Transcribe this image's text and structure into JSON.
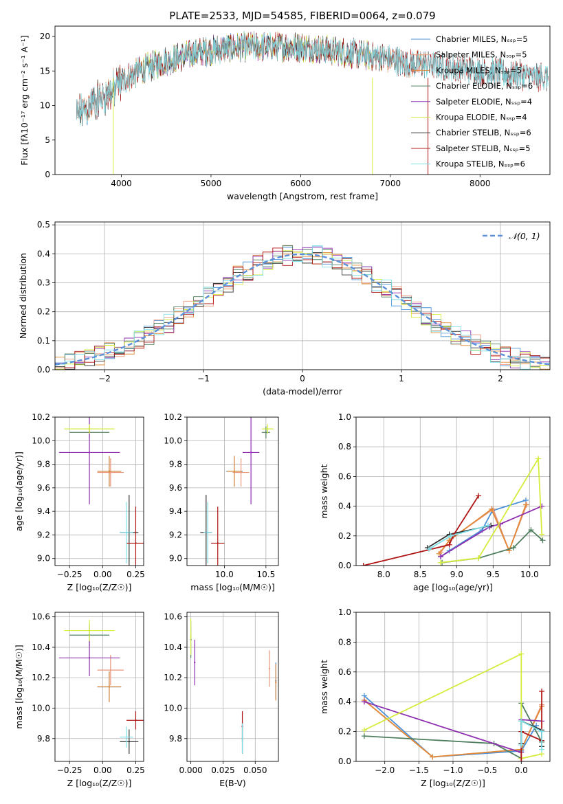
{
  "figure": {
    "title": "PLATE=2533, MJD=54585, FIBERID=0064, z=0.079"
  },
  "colors": {
    "Chabrier MILES": "#4a90d9",
    "Salpeter MILES": "#e9967a",
    "Kroupa MILES": "#e08a3a",
    "Chabrier ELODIE": "#4f7f5f",
    "Salpeter ELODIE": "#8e2fb0",
    "Kroupa ELODIE": "#d6ec3c",
    "Chabrier STELIB": "#333333",
    "Salpeter STELIB": "#b01515",
    "Kroupa STELIB": "#7ee0e8"
  },
  "chart_data": [
    {
      "id": "spectrum",
      "type": "line",
      "xlabel": "wavelength [Angstrom, rest frame]",
      "ylabel": "Flux [fλ10⁻¹⁷ erg cm⁻² s⁻¹ A⁻¹]",
      "xlim": [
        3260,
        8780
      ],
      "ylim": [
        0,
        21.5
      ],
      "xticks": [
        4000,
        5000,
        6000,
        7000,
        8000
      ],
      "yticks": [
        0,
        5,
        10,
        15,
        20
      ],
      "grid": false,
      "legend_position": "right",
      "legend": [
        "Chabrier MILES, N_SSP=5",
        "Salpeter MILES, N_SSP=5",
        "Kroupa MILES, N_SSP=5",
        "Chabrier ELODIE, N_SSP=6",
        "Salpeter ELODIE, N_SSP=4",
        "Kroupa ELODIE, N_SSP=4",
        "Chabrier STELIB, N_SSP=6",
        "Salpeter STELIB, N_SSP=5",
        "Kroupa STELIB, N_SSP=6"
      ],
      "continuum": {
        "x": [
          3500,
          3700,
          3900,
          4000,
          4200,
          4500,
          4800,
          5000,
          5300,
          5600,
          6000,
          6300,
          6600,
          6900,
          7200,
          7400,
          7700,
          8000,
          8400,
          8750
        ],
        "y": [
          8.5,
          10.5,
          12,
          13.5,
          15,
          16.5,
          17.5,
          18,
          18.5,
          18.5,
          18.5,
          18,
          17.5,
          17,
          16,
          16,
          15.5,
          15,
          14.5,
          14
        ]
      }
    },
    {
      "id": "residuals",
      "type": "line",
      "xlabel": "(data-model)/error",
      "ylabel": "Normed distribution",
      "xlim": [
        -2.5,
        2.5
      ],
      "ylim": [
        0,
        0.51
      ],
      "xticks": [
        -2,
        -1,
        0,
        1,
        2
      ],
      "yticks": [
        0.0,
        0.1,
        0.2,
        0.3,
        0.4,
        0.5
      ],
      "grid": true,
      "legend_position": "top-right",
      "legend": [
        "𝒩(0, 1)"
      ],
      "gaussian": {
        "mean": 0,
        "sigma": 1
      }
    },
    {
      "id": "age-vs-Z",
      "type": "scatter",
      "xlabel": "Z [log₁₀(Z/Z☉)]",
      "ylabel": "age  [log₁₀(age/yr)]",
      "xlim": [
        -0.36,
        0.31
      ],
      "ylim": [
        8.94,
        10.2
      ],
      "xticks": [
        -0.25,
        0.0,
        0.25
      ],
      "yticks": [
        9.0,
        9.2,
        9.4,
        9.6,
        9.8,
        10.0,
        10.2
      ],
      "grid": true,
      "points": [
        {
          "series": "Chabrier MILES",
          "x": 0.05,
          "y": 9.74,
          "xerr": 0.09,
          "yerr": 0.13
        },
        {
          "series": "Salpeter MILES",
          "x": 0.06,
          "y": 9.73,
          "xerr": 0.1,
          "yerr": 0.12
        },
        {
          "series": "Kroupa MILES",
          "x": 0.05,
          "y": 9.74,
          "xerr": 0.09,
          "yerr": 0.13
        },
        {
          "series": "Chabrier ELODIE",
          "x": -0.1,
          "y": 10.07,
          "xerr": 0.15,
          "yerr": 0.05
        },
        {
          "series": "Salpeter ELODIE",
          "x": -0.1,
          "y": 9.9,
          "xerr": 0.23,
          "yerr": 0.44
        },
        {
          "series": "Kroupa ELODIE",
          "x": -0.1,
          "y": 10.1,
          "xerr": 0.19,
          "yerr": 0.04
        },
        {
          "series": "Chabrier STELIB",
          "x": 0.2,
          "y": 9.22,
          "xerr": 0.07,
          "yerr": 0.32
        },
        {
          "series": "Salpeter STELIB",
          "x": 0.25,
          "y": 9.13,
          "xerr": 0.07,
          "yerr": 0.31
        },
        {
          "series": "Kroupa STELIB",
          "x": 0.18,
          "y": 9.22,
          "xerr": 0.05,
          "yerr": 0.26
        }
      ]
    },
    {
      "id": "age-vs-mass",
      "type": "scatter",
      "xlabel": "mass [log₁₀(M/M☉)]",
      "ylabel": "",
      "xlim": [
        9.55,
        10.65
      ],
      "ylim": [
        8.94,
        10.2
      ],
      "xticks": [
        10.0,
        10.5
      ],
      "yticks": [
        9.0,
        9.2,
        9.4,
        9.6,
        9.8,
        10.0,
        10.2
      ],
      "grid": true,
      "points": [
        {
          "series": "Chabrier MILES",
          "x": 10.12,
          "y": 9.74,
          "xerr": 0.1,
          "yerr": 0.13
        },
        {
          "series": "Salpeter MILES",
          "x": 10.2,
          "y": 9.73,
          "xerr": 0.1,
          "yerr": 0.12
        },
        {
          "series": "Kroupa MILES",
          "x": 10.12,
          "y": 9.74,
          "xerr": 0.09,
          "yerr": 0.13
        },
        {
          "series": "Chabrier ELODIE",
          "x": 10.5,
          "y": 10.07,
          "xerr": 0.05,
          "yerr": 0.05
        },
        {
          "series": "Salpeter ELODIE",
          "x": 10.32,
          "y": 9.9,
          "xerr": 0.1,
          "yerr": 0.44
        },
        {
          "series": "Kroupa ELODIE",
          "x": 10.52,
          "y": 10.1,
          "xerr": 0.07,
          "yerr": 0.04
        },
        {
          "series": "Chabrier STELIB",
          "x": 9.78,
          "y": 9.22,
          "xerr": 0.07,
          "yerr": 0.32
        },
        {
          "series": "Salpeter STELIB",
          "x": 9.92,
          "y": 9.13,
          "xerr": 0.08,
          "yerr": 0.31
        },
        {
          "series": "Kroupa STELIB",
          "x": 9.8,
          "y": 9.22,
          "xerr": 0.05,
          "yerr": 0.26
        }
      ]
    },
    {
      "id": "weight-vs-age",
      "type": "line",
      "xlabel": "age  [log₁₀(age/yr)]",
      "ylabel": "mass weight",
      "xlim": [
        7.62,
        10.28
      ],
      "ylim": [
        0,
        1.0
      ],
      "xticks": [
        8.0,
        8.5,
        9.0,
        9.5,
        10.0
      ],
      "yticks": [
        0.0,
        0.2,
        0.4,
        0.6,
        0.8,
        1.0
      ],
      "grid": true,
      "series": [
        {
          "name": "Chabrier MILES",
          "x": [
            8.78,
            8.9,
            9.35,
            9.49,
            9.95
          ],
          "y": [
            0.06,
            0.1,
            0.24,
            0.37,
            0.44
          ]
        },
        {
          "name": "Salpeter MILES",
          "x": [
            8.78,
            8.92,
            9.5,
            9.72,
            9.96
          ],
          "y": [
            0.09,
            0.18,
            0.38,
            0.1,
            0.41
          ]
        },
        {
          "name": "Kroupa MILES",
          "x": [
            8.76,
            8.9,
            9.48,
            9.72,
            9.95
          ],
          "y": [
            0.08,
            0.17,
            0.38,
            0.1,
            0.41
          ]
        },
        {
          "name": "Chabrier ELODIE",
          "x": [
            8.8,
            9.3,
            9.78,
            10.02,
            10.18
          ],
          "y": [
            0.02,
            0.05,
            0.12,
            0.24,
            0.17
          ]
        },
        {
          "name": "Salpeter ELODIE",
          "x": [
            8.78,
            9.45,
            9.6,
            10.17
          ],
          "y": [
            0.06,
            0.26,
            0.28,
            0.4
          ]
        },
        {
          "name": "Kroupa ELODIE",
          "x": [
            8.78,
            9.3,
            10.12,
            10.17
          ],
          "y": [
            0.02,
            0.05,
            0.72,
            0.21
          ]
        },
        {
          "name": "Chabrier STELIB",
          "x": [
            8.6,
            8.9,
            9.47
          ],
          "y": [
            0.12,
            0.21,
            0.27
          ]
        },
        {
          "name": "Salpeter STELIB",
          "x": [
            7.72,
            8.9,
            8.95,
            9.3
          ],
          "y": [
            0.0,
            0.14,
            0.2,
            0.47
          ]
        },
        {
          "name": "Kroupa STELIB",
          "x": [
            8.62,
            8.92,
            9.43
          ],
          "y": [
            0.11,
            0.2,
            0.27
          ]
        }
      ]
    },
    {
      "id": "mass-vs-Z",
      "type": "scatter",
      "xlabel": "Z [log₁₀(Z/Z☉)]",
      "ylabel": "mass [log₁₀(M/M☉)]",
      "xlim": [
        -0.36,
        0.31
      ],
      "ylim": [
        9.65,
        10.63
      ],
      "xticks": [
        -0.25,
        0.0,
        0.25
      ],
      "yticks": [
        9.8,
        10.0,
        10.2,
        10.4,
        10.6
      ],
      "grid": true,
      "points": [
        {
          "series": "Chabrier MILES",
          "x": 0.05,
          "y": 10.14,
          "xerr": 0.09,
          "yerr": 0.1
        },
        {
          "series": "Salpeter MILES",
          "x": 0.06,
          "y": 10.25,
          "xerr": 0.1,
          "yerr": 0.1
        },
        {
          "series": "Kroupa MILES",
          "x": 0.05,
          "y": 10.14,
          "xerr": 0.09,
          "yerr": 0.1
        },
        {
          "series": "Chabrier ELODIE",
          "x": -0.1,
          "y": 10.48,
          "xerr": 0.15,
          "yerr": 0.07
        },
        {
          "series": "Salpeter ELODIE",
          "x": -0.1,
          "y": 10.33,
          "xerr": 0.23,
          "yerr": 0.12
        },
        {
          "series": "Kroupa ELODIE",
          "x": -0.1,
          "y": 10.51,
          "xerr": 0.19,
          "yerr": 0.07
        },
        {
          "series": "Chabrier STELIB",
          "x": 0.2,
          "y": 9.78,
          "xerr": 0.07,
          "yerr": 0.08
        },
        {
          "series": "Salpeter STELIB",
          "x": 0.25,
          "y": 9.92,
          "xerr": 0.07,
          "yerr": 0.06
        },
        {
          "series": "Kroupa STELIB",
          "x": 0.18,
          "y": 9.81,
          "xerr": 0.05,
          "yerr": 0.07
        }
      ]
    },
    {
      "id": "mass-vs-EBV",
      "type": "scatter",
      "xlabel": "E(B-V)",
      "ylabel": "",
      "xlim": [
        -0.003,
        0.068
      ],
      "ylim": [
        9.65,
        10.63
      ],
      "xticks": [
        0.0,
        0.025,
        0.05
      ],
      "yticks": [
        9.8,
        10.0,
        10.2,
        10.4,
        10.6
      ],
      "grid": true,
      "points": [
        {
          "series": "Chabrier MILES",
          "x": 0.066,
          "y": 10.18,
          "yerr": 0.12
        },
        {
          "series": "Salpeter MILES",
          "x": 0.061,
          "y": 10.26,
          "yerr": 0.12
        },
        {
          "series": "Kroupa MILES",
          "x": 0.066,
          "y": 10.17,
          "yerr": 0.12
        },
        {
          "series": "Chabrier ELODIE",
          "x": 0.0,
          "y": 10.45,
          "yerr": 0.12
        },
        {
          "series": "Salpeter ELODIE",
          "x": 0.003,
          "y": 10.3,
          "yerr": 0.15
        },
        {
          "series": "Kroupa ELODIE",
          "x": 0.0,
          "y": 10.47,
          "yerr": 0.12
        },
        {
          "series": "Chabrier STELIB",
          "x": 0.04,
          "y": 9.8,
          "yerr": 0.1
        },
        {
          "series": "Salpeter STELIB",
          "x": 0.04,
          "y": 9.88,
          "yerr": 0.1
        },
        {
          "series": "Kroupa STELIB",
          "x": 0.04,
          "y": 9.8,
          "yerr": 0.1
        }
      ]
    },
    {
      "id": "weight-vs-Z",
      "type": "line",
      "xlabel": "Z [log₁₀(Z/Z☉)]",
      "ylabel": "mass weight",
      "xlim": [
        -2.42,
        0.42
      ],
      "ylim": [
        0,
        1.0
      ],
      "xticks": [
        -2.0,
        -1.5,
        -1.0,
        -0.5,
        0.0
      ],
      "yticks": [
        0.0,
        0.2,
        0.4,
        0.6,
        0.8,
        1.0
      ],
      "grid": true,
      "series": [
        {
          "name": "Chabrier MILES",
          "x": [
            -2.3,
            -1.3,
            0.0,
            0.22
          ],
          "y": [
            0.44,
            0.03,
            0.07,
            0.24
          ]
        },
        {
          "name": "Salpeter MILES",
          "x": [
            -2.3,
            -1.3,
            0.0,
            0.3
          ],
          "y": [
            0.41,
            0.03,
            0.08,
            0.38
          ]
        },
        {
          "name": "Kroupa MILES",
          "x": [
            -2.3,
            -1.3,
            0.0,
            0.3
          ],
          "y": [
            0.41,
            0.03,
            0.08,
            0.37
          ]
        },
        {
          "name": "Chabrier ELODIE",
          "x": [
            -2.3,
            -0.4,
            0.0,
            0.0,
            0.3
          ],
          "y": [
            0.17,
            0.12,
            0.02,
            0.39,
            0.13
          ]
        },
        {
          "name": "Salpeter ELODIE",
          "x": [
            -2.3,
            0.0,
            0.0,
            0.3
          ],
          "y": [
            0.4,
            0.06,
            0.28,
            0.27
          ]
        },
        {
          "name": "Kroupa ELODIE",
          "x": [
            -2.3,
            0.0,
            0.0,
            0.3
          ],
          "y": [
            0.21,
            0.72,
            0.02,
            0.05
          ]
        },
        {
          "name": "Chabrier STELIB",
          "x": [
            0.0,
            0.0,
            0.3,
            0.3
          ],
          "y": [
            0.12,
            0.27,
            0.21,
            0.1
          ]
        },
        {
          "name": "Salpeter STELIB",
          "x": [
            0.0,
            0.0,
            0.3,
            0.3
          ],
          "y": [
            0.0,
            0.2,
            0.14,
            0.47
          ]
        },
        {
          "name": "Kroupa STELIB",
          "x": [
            0.0,
            0.0,
            0.3,
            0.3
          ],
          "y": [
            0.11,
            0.27,
            0.2,
            0.08
          ]
        }
      ]
    }
  ]
}
